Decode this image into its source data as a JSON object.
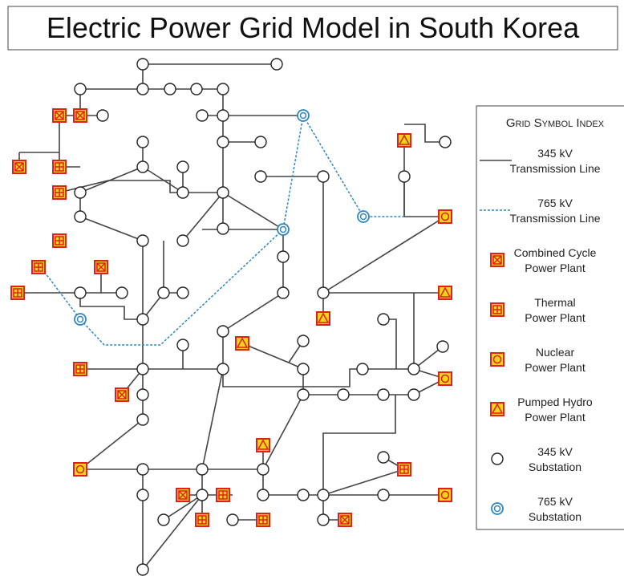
{
  "title": "Electric Power Grid Model in South Korea",
  "legend": {
    "title": "Grid Symbol Index",
    "items": [
      {
        "label": [
          "345 kV",
          "Transmission Line"
        ]
      },
      {
        "label": [
          "765 kV",
          "Transmission Line"
        ]
      },
      {
        "label": [
          "Combined Cycle",
          "Power Plant"
        ]
      },
      {
        "label": [
          "Thermal",
          "Power Plant"
        ]
      },
      {
        "label": [
          "Nuclear",
          "Power Plant"
        ]
      },
      {
        "label": [
          "Pumped Hydro",
          "Power Plant"
        ]
      },
      {
        "label": [
          "345 kV",
          "Substation"
        ]
      },
      {
        "label": [
          "765 kV",
          "Substation"
        ]
      }
    ]
  }
}
